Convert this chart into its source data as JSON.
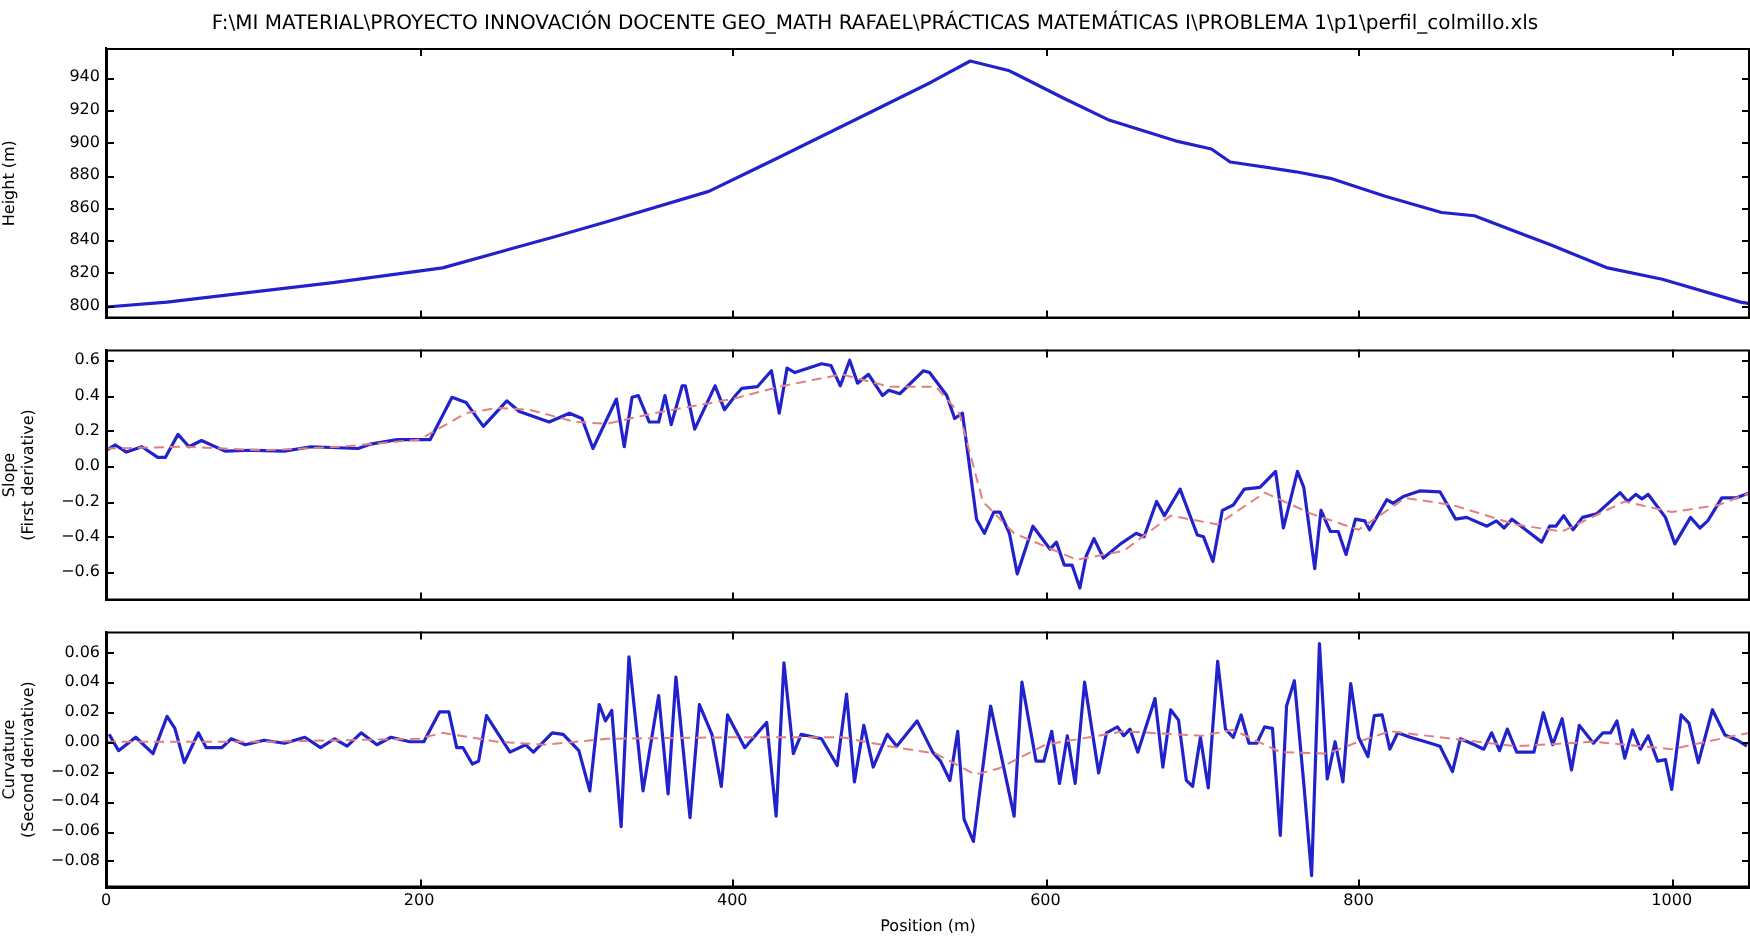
{
  "chart_data": [
    {
      "type": "line",
      "title": "F:\\MI MATERIAL\\PROYECTO INNOVACIÓN DOCENTE GEO_MATH RAFAEL\\PRÁCTICAS MATEMÁTICAS I\\PROBLEMA 1\\p1\\perfil_colmillo.xls",
      "ylabel": "Height (m)",
      "xlim": [
        0,
        1050
      ],
      "xticks": [
        0,
        200,
        400,
        600,
        800,
        1000
      ],
      "ylim": [
        792,
        958
      ],
      "yticks": [
        800,
        820,
        840,
        860,
        880,
        900,
        920,
        940
      ],
      "grid": false,
      "legend": false,
      "tick_labels": "y",
      "marker": "none",
      "series": [
        {
          "color": "#2222cc",
          "line_style": "solid",
          "x": [
            0,
            39,
            145,
            215,
            286,
            322,
            385,
            428,
            485,
            527,
            552,
            577,
            612,
            640,
            683,
            706,
            718,
            760,
            782,
            817,
            853,
            874,
            923,
            959,
            994,
            1044,
            1050
          ],
          "values": [
            799,
            802,
            814,
            823,
            842,
            852,
            870,
            890,
            917,
            937,
            950,
            944,
            927,
            914,
            901,
            896,
            888,
            882,
            878,
            867,
            857,
            855,
            837,
            823,
            816,
            802,
            801
          ]
        }
      ]
    },
    {
      "type": "line",
      "ylabel": "Slope\n(First derivative)",
      "xlim": [
        0,
        1050
      ],
      "xticks": [
        0,
        200,
        400,
        600,
        800,
        1000
      ],
      "ylim": [
        -0.76,
        0.66
      ],
      "yticks": [
        {
          "value": -0.6,
          "label": "−0.6"
        },
        {
          "value": -0.4,
          "label": "−0.4"
        },
        {
          "value": -0.2,
          "label": "−0.2"
        },
        {
          "value": 0,
          "label": "0.0"
        },
        {
          "value": 0.2,
          "label": "0.2"
        },
        {
          "value": 0.4,
          "label": "0.4"
        },
        {
          "value": 0.6,
          "label": "0.6"
        }
      ],
      "grid": false,
      "legend": false,
      "tick_labels": "y",
      "marker": "none",
      "series": [
        {
          "color": "#2222cc",
          "line_style": "solid",
          "x": [
            0,
            6,
            13,
            23,
            33,
            38,
            46,
            53,
            61,
            76,
            93,
            114,
            131,
            161,
            169,
            186,
            207,
            221,
            230,
            241,
            256,
            264,
            283,
            296,
            304,
            311,
            326,
            331,
            336,
            340,
            347,
            353,
            357,
            361,
            368,
            370,
            376,
            389,
            395,
            402,
            406,
            416,
            425,
            430,
            435,
            440,
            457,
            463,
            469,
            475,
            480,
            487,
            496,
            500,
            507,
            522,
            526,
            537,
            542,
            547,
            556,
            561,
            567,
            571,
            577,
            582,
            592,
            603,
            607,
            612,
            617,
            622,
            626,
            631,
            637,
            648,
            658,
            663,
            671,
            676,
            686,
            697,
            701,
            707,
            713,
            720,
            727,
            737,
            747,
            752,
            761,
            765,
            772,
            776,
            782,
            787,
            792,
            798,
            804,
            807,
            818,
            822,
            829,
            839,
            852,
            862,
            869,
            882,
            888,
            893,
            898,
            917,
            922,
            926,
            931,
            937,
            943,
            952,
            967,
            972,
            977,
            981,
            985,
            996,
            1002,
            1012,
            1018,
            1023,
            1032,
            1041,
            1050
          ],
          "values": [
            0.09,
            0.12,
            0.08,
            0.11,
            0.05,
            0.05,
            0.18,
            0.11,
            0.145,
            0.085,
            0.09,
            0.085,
            0.11,
            0.1,
            0.125,
            0.15,
            0.15,
            0.39,
            0.36,
            0.225,
            0.37,
            0.31,
            0.25,
            0.3,
            0.27,
            0.1,
            0.38,
            0.11,
            0.39,
            0.4,
            0.25,
            0.25,
            0.4,
            0.235,
            0.455,
            0.455,
            0.21,
            0.455,
            0.32,
            0.4,
            0.44,
            0.45,
            0.54,
            0.3,
            0.555,
            0.53,
            0.58,
            0.57,
            0.455,
            0.6,
            0.47,
            0.52,
            0.4,
            0.43,
            0.41,
            0.54,
            0.53,
            0.4,
            0.27,
            0.3,
            -0.3,
            -0.38,
            -0.26,
            -0.26,
            -0.38,
            -0.61,
            -0.34,
            -0.47,
            -0.43,
            -0.56,
            -0.56,
            -0.69,
            -0.51,
            -0.41,
            -0.52,
            -0.44,
            -0.38,
            -0.4,
            -0.2,
            -0.28,
            -0.13,
            -0.39,
            -0.4,
            -0.54,
            -0.25,
            -0.22,
            -0.13,
            -0.12,
            -0.03,
            -0.35,
            -0.03,
            -0.12,
            -0.58,
            -0.25,
            -0.37,
            -0.37,
            -0.5,
            -0.3,
            -0.31,
            -0.36,
            -0.19,
            -0.21,
            -0.17,
            -0.14,
            -0.145,
            -0.3,
            -0.29,
            -0.34,
            -0.31,
            -0.35,
            -0.3,
            -0.43,
            -0.34,
            -0.34,
            -0.28,
            -0.36,
            -0.29,
            -0.27,
            -0.15,
            -0.2,
            -0.16,
            -0.185,
            -0.16,
            -0.29,
            -0.44,
            -0.29,
            -0.35,
            -0.31,
            -0.18,
            -0.18,
            -0.15
          ]
        },
        {
          "color": "#e08080",
          "line_style": "dashed",
          "x": [
            0,
            50,
            100,
            150,
            200,
            230,
            250,
            270,
            300,
            320,
            350,
            400,
            430,
            470,
            500,
            530,
            545,
            560,
            580,
            620,
            650,
            680,
            710,
            740,
            770,
            800,
            830,
            860,
            900,
            930,
            970,
            1000,
            1030,
            1050
          ],
          "values": [
            0.1,
            0.11,
            0.09,
            0.11,
            0.15,
            0.3,
            0.33,
            0.32,
            0.25,
            0.24,
            0.3,
            0.38,
            0.45,
            0.52,
            0.45,
            0.45,
            0.3,
            -0.2,
            -0.38,
            -0.53,
            -0.48,
            -0.28,
            -0.33,
            -0.15,
            -0.27,
            -0.36,
            -0.18,
            -0.22,
            -0.33,
            -0.37,
            -0.2,
            -0.26,
            -0.22,
            -0.15
          ]
        }
      ]
    },
    {
      "type": "line",
      "xlabel": "Position (m)",
      "ylabel": "Curvature\n(Second derivative)",
      "xlim": [
        0,
        1050
      ],
      "xticks": [
        0,
        200,
        400,
        600,
        800,
        1000
      ],
      "ylim": [
        -0.098,
        0.074
      ],
      "yticks": [
        {
          "value": -0.08,
          "label": "−0.08"
        },
        {
          "value": -0.06,
          "label": "−0.06"
        },
        {
          "value": -0.04,
          "label": "−0.04"
        },
        {
          "value": -0.02,
          "label": "−0.02"
        },
        {
          "value": 0,
          "label": "0.00"
        },
        {
          "value": 0.02,
          "label": "0.02"
        },
        {
          "value": 0.04,
          "label": "0.04"
        },
        {
          "value": 0.06,
          "label": "0.06"
        }
      ],
      "grid": false,
      "legend": false,
      "marker": "none",
      "series": [
        {
          "color": "#2222cc",
          "line_style": "solid",
          "x": [
            2,
            8,
            19,
            30,
            39,
            44,
            50,
            59,
            64,
            74,
            80,
            89,
            101,
            114,
            127,
            137,
            146,
            154,
            163,
            173,
            182,
            194,
            203,
            213,
            219,
            224,
            228,
            234,
            238,
            243,
            258,
            268,
            273,
            285,
            292,
            302,
            309,
            315,
            319,
            323,
            329,
            334,
            343,
            353,
            359,
            364,
            373,
            379,
            387,
            393,
            397,
            408,
            422,
            428,
            433,
            439,
            444,
            457,
            467,
            473,
            478,
            484,
            490,
            499,
            505,
            518,
            528,
            533,
            539,
            544,
            548,
            554,
            565,
            580,
            585,
            594,
            599,
            604,
            609,
            614,
            619,
            625,
            634,
            639,
            646,
            650,
            654,
            659,
            670,
            675,
            680,
            685,
            690,
            694,
            699,
            704,
            710,
            715,
            720,
            725,
            730,
            735,
            740,
            745,
            750,
            754,
            759,
            765,
            770,
            775,
            780,
            785,
            790,
            795,
            800,
            806,
            810,
            815,
            820,
            825,
            833,
            846,
            852,
            860,
            865,
            874,
            880,
            885,
            890,
            895,
            901,
            912,
            918,
            924,
            930,
            936,
            941,
            950,
            956,
            961,
            965,
            970,
            975,
            980,
            985,
            991,
            996,
            1000,
            1006,
            1011,
            1017,
            1026,
            1034,
            1042,
            1048
          ],
          "values": [
            0.005,
            -0.006,
            0.003,
            -0.008,
            0.017,
            0.009,
            -0.014,
            0.006,
            -0.004,
            -0.004,
            0.002,
            -0.002,
            0.001,
            -0.001,
            0.003,
            -0.004,
            0.002,
            -0.003,
            0.006,
            -0.002,
            0.003,
            0.0,
            0.0,
            0.02,
            0.02,
            -0.004,
            -0.004,
            -0.015,
            -0.013,
            0.0175,
            -0.007,
            -0.002,
            -0.007,
            0.006,
            0.005,
            -0.006,
            -0.033,
            0.025,
            0.014,
            0.021,
            -0.057,
            0.057,
            -0.033,
            0.031,
            -0.035,
            0.0435,
            -0.051,
            0.025,
            0.005,
            -0.03,
            0.018,
            -0.004,
            0.013,
            -0.05,
            0.053,
            -0.008,
            0.005,
            0.002,
            -0.016,
            0.032,
            -0.027,
            0.011,
            -0.017,
            0.005,
            -0.003,
            0.014,
            -0.007,
            -0.013,
            -0.026,
            0.007,
            -0.052,
            -0.067,
            0.024,
            -0.05,
            0.04,
            -0.013,
            -0.013,
            0.007,
            -0.028,
            0.004,
            -0.028,
            0.04,
            -0.021,
            0.006,
            0.01,
            0.004,
            0.0085,
            -0.007,
            0.029,
            -0.017,
            0.0215,
            0.0145,
            -0.026,
            -0.03,
            0.003,
            -0.031,
            0.054,
            0.0085,
            0.003,
            0.018,
            -0.001,
            -0.001,
            0.01,
            0.009,
            -0.063,
            0.024,
            0.041,
            -0.028,
            -0.09,
            0.066,
            -0.025,
            0.0,
            -0.027,
            0.039,
            0.003,
            -0.01,
            0.0175,
            0.018,
            -0.005,
            0.006,
            0.003,
            -0.001,
            -0.003,
            -0.02,
            0.002,
            -0.002,
            -0.005,
            0.006,
            -0.006,
            0.0085,
            -0.007,
            -0.007,
            0.0195,
            -0.002,
            0.0155,
            -0.019,
            0.011,
            -0.001,
            0.006,
            0.006,
            0.014,
            -0.011,
            0.008,
            -0.005,
            0.004,
            -0.013,
            -0.012,
            -0.032,
            0.018,
            0.0125,
            -0.014,
            0.0215,
            0.0045,
            0.001,
            -0.003
          ]
        },
        {
          "color": "#e08080",
          "line_style": "dashed",
          "x": [
            0,
            100,
            200,
            215,
            250,
            280,
            320,
            400,
            470,
            500,
            530,
            555,
            570,
            600,
            650,
            700,
            720,
            750,
            780,
            800,
            820,
            860,
            900,
            950,
            1000,
            1040,
            1050
          ],
          "values": [
            0.0,
            0.0,
            0.002,
            0.006,
            0.0,
            -0.002,
            0.002,
            0.003,
            0.003,
            -0.003,
            -0.008,
            -0.022,
            -0.018,
            -0.002,
            0.007,
            0.004,
            0.008,
            -0.007,
            -0.008,
            0.0,
            0.007,
            0.002,
            -0.003,
            0.0,
            -0.005,
            0.004,
            0.006
          ]
        }
      ]
    }
  ]
}
